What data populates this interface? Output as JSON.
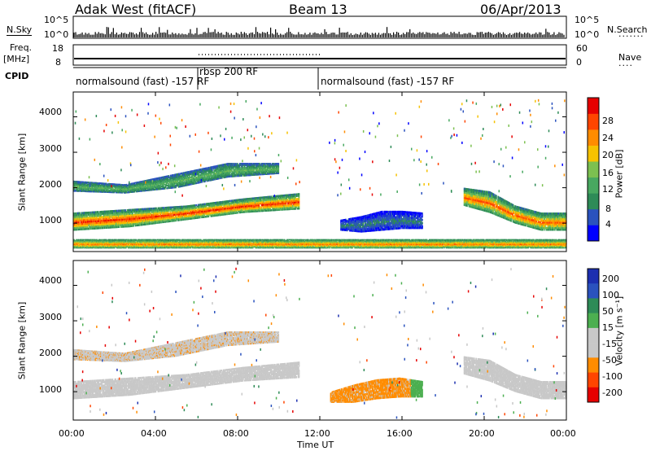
{
  "header": {
    "station": "Adak West (fitACF)",
    "beam": "Beam 13",
    "date": "06/Apr/2013"
  },
  "strip_top": {
    "left_label": "N.Sky",
    "right_label": "N.Search",
    "left_ticks": [
      "10^5",
      "10^0"
    ],
    "right_ticks": [
      "10^5",
      "10^0"
    ]
  },
  "strip_freq": {
    "left_label_1": "Freq.",
    "left_label_2": "[MHz]",
    "right_label": "Nave",
    "left_ticks": [
      "18",
      "8"
    ],
    "right_ticks": [
      "60",
      "0"
    ]
  },
  "cpid": {
    "label": "CPID",
    "segments": [
      {
        "start": 0,
        "end": 6.1,
        "text": "normalsound (fast) -157 RF"
      },
      {
        "start": 6.1,
        "end": 12.0,
        "text": "rbsp 200 RF"
      },
      {
        "start": 12.0,
        "end": 24,
        "text": "normalsound (fast) -157 RF"
      }
    ]
  },
  "colors": {
    "power": [
      "#0000ff",
      "#2a52be",
      "#2e8b57",
      "#48a860",
      "#7cc050",
      "#f6c200",
      "#ff8c00",
      "#ff4500",
      "#e60000"
    ],
    "velocity": [
      "#e60000",
      "#ff4500",
      "#ff8c00",
      "#c8c8c8",
      "#c8c8c8",
      "#4caf50",
      "#2e8b57",
      "#2a52be",
      "#1c2fb0"
    ]
  },
  "chart_data": [
    {
      "type": "heatmap",
      "variable": "Power",
      "ylabel": "Slant Range [km]",
      "ylim": [
        200,
        4700
      ],
      "xlim": [
        0,
        24
      ],
      "yticks": [
        "1000",
        "2000",
        "3000",
        "4000"
      ],
      "ytick_values": [
        1000,
        2000,
        3000,
        4000
      ],
      "colorbar_label": "Power [dB]",
      "colorbar_ticks": [
        "4",
        "8",
        "12",
        "16",
        "20",
        "24",
        "28"
      ],
      "colorbar_values": [
        4,
        8,
        12,
        16,
        20,
        24,
        28
      ],
      "colorbar_range": [
        0,
        32
      ],
      "bands": [
        {
          "t0": 0,
          "t1": 11.0,
          "r0": [
            800,
            900,
            1100,
            1300,
            1400
          ],
          "r1": [
            1300,
            1400,
            1500,
            1700,
            1850
          ],
          "level": 8,
          "peak": 28
        },
        {
          "t0": 0,
          "t1": 10.0,
          "r0": [
            1900,
            1850,
            2000,
            2300,
            2400
          ],
          "r1": [
            2200,
            2100,
            2400,
            2700,
            2700
          ],
          "level": 6,
          "peak": 14
        },
        {
          "t0": 13.0,
          "t1": 17.0,
          "r0": [
            800,
            750,
            800,
            850,
            850
          ],
          "r1": [
            1100,
            1200,
            1350,
            1350,
            1300
          ],
          "level": 2,
          "peak": 8
        },
        {
          "t0": 19.0,
          "t1": 24.0,
          "r0": [
            1500,
            1300,
            1000,
            800,
            800
          ],
          "r1": [
            2000,
            1900,
            1500,
            1300,
            1300
          ],
          "level": 8,
          "peak": 26
        },
        {
          "t0": 0,
          "t1": 24.0,
          "r0": [
            300,
            300,
            300,
            300,
            300
          ],
          "r1": [
            550,
            550,
            550,
            550,
            550
          ],
          "level": 10,
          "peak": 24
        }
      ]
    },
    {
      "type": "heatmap",
      "variable": "Velocity",
      "ylabel": "Slant Range [km]",
      "xlabel": "Time UT",
      "ylim": [
        200,
        4700
      ],
      "xlim": [
        0,
        24
      ],
      "yticks": [
        "1000",
        "2000",
        "3000",
        "4000"
      ],
      "ytick_values": [
        1000,
        2000,
        3000,
        4000
      ],
      "xticks": [
        "00:00",
        "04:00",
        "08:00",
        "12:00",
        "16:00",
        "20:00",
        "00:00"
      ],
      "xtick_values": [
        0,
        4,
        8,
        12,
        16,
        20,
        24
      ],
      "colorbar_label": "Velocity [m s⁻¹]",
      "colorbar_ticks": [
        "-200",
        "-100",
        "-50",
        "-15",
        "15",
        "50",
        "100",
        "200"
      ],
      "bands": [
        {
          "t0": 0,
          "t1": 11.0,
          "r0": [
            800,
            900,
            1100,
            1300,
            1400
          ],
          "r1": [
            1300,
            1400,
            1500,
            1700,
            1850
          ],
          "vel": 0
        },
        {
          "t0": 0,
          "t1": 10.0,
          "r0": [
            1900,
            1850,
            2000,
            2300,
            2400
          ],
          "r1": [
            2200,
            2100,
            2400,
            2700,
            2700
          ],
          "vel": -40
        },
        {
          "t0": 12.5,
          "t1": 17.0,
          "r0": [
            700,
            700,
            800,
            850,
            850
          ],
          "r1": [
            1000,
            1200,
            1350,
            1400,
            1300
          ],
          "vel": -60
        },
        {
          "t0": 19.0,
          "t1": 24.0,
          "r0": [
            1500,
            1300,
            1000,
            800,
            800
          ],
          "r1": [
            2000,
            1900,
            1500,
            1300,
            1300
          ],
          "vel": 0
        }
      ]
    }
  ]
}
